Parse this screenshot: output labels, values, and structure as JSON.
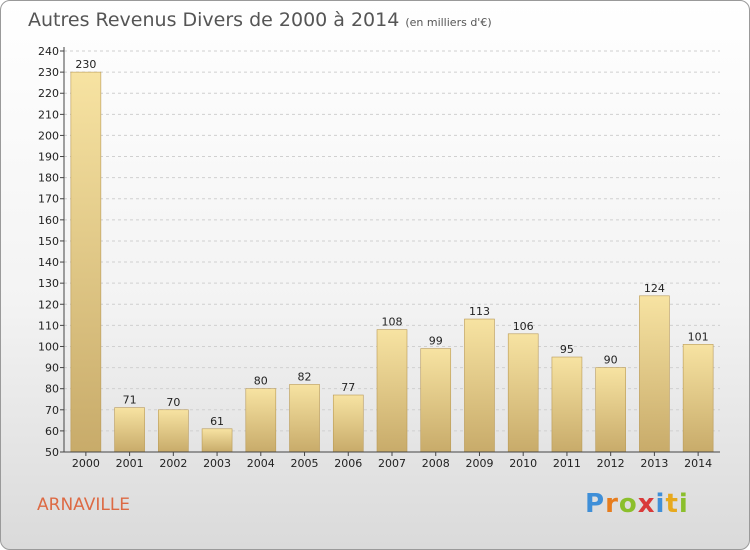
{
  "title": "Autres Revenus Divers de 2000 à 2014",
  "title_unit": "(en milliers d'€)",
  "city": "ARNAVILLE",
  "logo": {
    "letters": [
      "P",
      "r",
      "o",
      "x",
      "i",
      "t",
      "i"
    ],
    "colors": [
      "#3f8fd8",
      "#e77d1d",
      "#8bbf2c",
      "#d93a3a",
      "#3f8fd8",
      "#e7a91d",
      "#8bbf2c"
    ]
  },
  "colors": {
    "bar_light": "#f7e3a2",
    "bar_dark": "#c8ab6a",
    "bar_edge": "#b99a57",
    "axis": "#444444",
    "grid": "#d0d0d0",
    "text": "#222222"
  },
  "chart_data": {
    "type": "bar",
    "categories": [
      "2000",
      "2001",
      "2002",
      "2003",
      "2004",
      "2005",
      "2006",
      "2007",
      "2008",
      "2009",
      "2010",
      "2011",
      "2012",
      "2013",
      "2014"
    ],
    "values": [
      230,
      71,
      70,
      61,
      80,
      82,
      77,
      108,
      99,
      113,
      106,
      95,
      90,
      124,
      101
    ],
    "ylim": [
      50,
      240
    ],
    "ytick_step": 10,
    "grid": true
  }
}
